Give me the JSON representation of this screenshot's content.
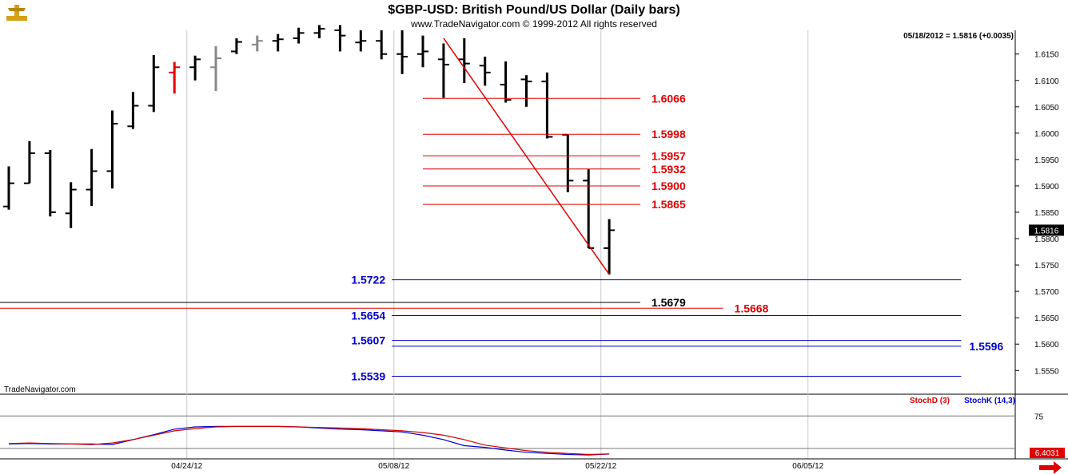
{
  "header": {
    "title": "$GBP-USD:  British Pound/US Dollar  (Daily bars)",
    "copyright": "www.TradeNavigator.com © 1999-2012 All rights reserved",
    "last_quote": "05/18/2012 = 1.5816 (+0.0035)",
    "brand": "TradeNavigator.com"
  },
  "colors": {
    "bars": "#000000",
    "up_mark": "#e00000",
    "grey_bars": "#888888",
    "red_levels": "#e00000",
    "blue_levels": "#0000cc",
    "grid": "#c8c8c8",
    "stoch_d": "#d00000",
    "stoch_k": "#0000cc"
  },
  "chart_data": {
    "type": "ohlc",
    "ylim": [
      1.5505,
      1.6195
    ],
    "yticks": [
      "1.6150",
      "1.6100",
      "1.6050",
      "1.6000",
      "1.5950",
      "1.5900",
      "1.5850",
      "1.5800",
      "1.5750",
      "1.5700",
      "1.5650",
      "1.5600",
      "1.5550"
    ],
    "xticks": [
      "04/24/12",
      "05/08/12",
      "05/22/12",
      "06/05/12"
    ],
    "last_price_label": "1.5816",
    "bars": [
      {
        "o": 1.5861,
        "h": 1.5937,
        "l": 1.5855,
        "c": 1.5905,
        "color": "black"
      },
      {
        "o": 1.5905,
        "h": 1.5985,
        "l": 1.5905,
        "c": 1.5962,
        "color": "black"
      },
      {
        "o": 1.5962,
        "h": 1.5968,
        "l": 1.5842,
        "c": 1.585,
        "color": "black"
      },
      {
        "o": 1.5848,
        "h": 1.5907,
        "l": 1.582,
        "c": 1.5893,
        "color": "black"
      },
      {
        "o": 1.5893,
        "h": 1.597,
        "l": 1.5862,
        "c": 1.5928,
        "color": "black"
      },
      {
        "o": 1.5928,
        "h": 1.6043,
        "l": 1.5895,
        "c": 1.6018,
        "color": "black"
      },
      {
        "o": 1.6013,
        "h": 1.6078,
        "l": 1.6008,
        "c": 1.6052,
        "color": "black"
      },
      {
        "o": 1.6052,
        "h": 1.6148,
        "l": 1.604,
        "c": 1.6125,
        "color": "black"
      },
      {
        "o": 1.6115,
        "h": 1.6135,
        "l": 1.6075,
        "c": 1.6125,
        "color": "red"
      },
      {
        "o": 1.6125,
        "h": 1.6147,
        "l": 1.61,
        "c": 1.614,
        "color": "black"
      },
      {
        "o": 1.6125,
        "h": 1.6165,
        "l": 1.608,
        "c": 1.6142,
        "color": "grey"
      },
      {
        "o": 1.6155,
        "h": 1.618,
        "l": 1.615,
        "c": 1.6173,
        "color": "black"
      },
      {
        "o": 1.6168,
        "h": 1.6185,
        "l": 1.6155,
        "c": 1.6175,
        "color": "grey"
      },
      {
        "o": 1.6175,
        "h": 1.6188,
        "l": 1.6155,
        "c": 1.6178,
        "color": "black"
      },
      {
        "o": 1.618,
        "h": 1.62,
        "l": 1.617,
        "c": 1.619,
        "color": "black"
      },
      {
        "o": 1.619,
        "h": 1.6205,
        "l": 1.618,
        "c": 1.6198,
        "color": "black"
      },
      {
        "o": 1.6195,
        "h": 1.6205,
        "l": 1.6155,
        "c": 1.6185,
        "color": "black"
      },
      {
        "o": 1.6172,
        "h": 1.6195,
        "l": 1.6155,
        "c": 1.6175,
        "color": "black"
      },
      {
        "o": 1.6175,
        "h": 1.6195,
        "l": 1.614,
        "c": 1.615,
        "color": "black"
      },
      {
        "o": 1.615,
        "h": 1.6195,
        "l": 1.6112,
        "c": 1.6145,
        "color": "black"
      },
      {
        "o": 1.615,
        "h": 1.6185,
        "l": 1.6125,
        "c": 1.6155,
        "color": "black"
      },
      {
        "o": 1.614,
        "h": 1.617,
        "l": 1.6067,
        "c": 1.613,
        "color": "black"
      },
      {
        "o": 1.614,
        "h": 1.618,
        "l": 1.6095,
        "c": 1.6132,
        "color": "black"
      },
      {
        "o": 1.6128,
        "h": 1.6145,
        "l": 1.609,
        "c": 1.6115,
        "color": "black"
      },
      {
        "o": 1.6092,
        "h": 1.6136,
        "l": 1.6058,
        "c": 1.6063,
        "color": "black"
      },
      {
        "o": 1.6102,
        "h": 1.611,
        "l": 1.605,
        "c": 1.6098,
        "color": "black"
      },
      {
        "o": 1.6098,
        "h": 1.6115,
        "l": 1.599,
        "c": 1.5993,
        "color": "black"
      },
      {
        "o": 1.5997,
        "h": 1.5997,
        "l": 1.5888,
        "c": 1.591,
        "color": "black"
      },
      {
        "o": 1.591,
        "h": 1.5932,
        "l": 1.5782,
        "c": 1.5782,
        "color": "black"
      },
      {
        "o": 1.5782,
        "h": 1.5837,
        "l": 1.5732,
        "c": 1.5816,
        "color": "black"
      }
    ],
    "trendline": {
      "from_bar": 21,
      "from_price": 1.618,
      "to_bar": 29,
      "to_price": 1.5732
    },
    "levels": [
      {
        "value": 1.6066,
        "label": "1.6066",
        "color": "red",
        "from_bar": 20,
        "to_bar": 30.5,
        "label_side": "right"
      },
      {
        "value": 1.5998,
        "label": "1.5998",
        "color": "red",
        "from_bar": 20,
        "to_bar": 30.5,
        "label_side": "right"
      },
      {
        "value": 1.5957,
        "label": "1.5957",
        "color": "red",
        "from_bar": 20,
        "to_bar": 30.5,
        "label_side": "right"
      },
      {
        "value": 1.5932,
        "label": "1.5932",
        "color": "red",
        "from_bar": 20,
        "to_bar": 30.5,
        "label_side": "right"
      },
      {
        "value": 1.59,
        "label": "1.5900",
        "color": "red",
        "from_bar": 20,
        "to_bar": 30.5,
        "label_side": "right"
      },
      {
        "value": 1.5865,
        "label": "1.5865",
        "color": "red",
        "from_bar": 20,
        "to_bar": 30.5,
        "label_side": "right"
      },
      {
        "value": 1.5722,
        "label": "1.5722",
        "color": "blue",
        "from_bar": 18.5,
        "to_bar": 46,
        "label_side": "left"
      },
      {
        "value": 1.5679,
        "label": "1.5679",
        "color": "black",
        "from_bar": -0.5,
        "to_bar": 30.5,
        "label_side": "right"
      },
      {
        "value": 1.5668,
        "label": "1.5668",
        "color": "red",
        "from_bar": -0.5,
        "to_bar": 34.5,
        "label_side": "right"
      },
      {
        "value": 1.5654,
        "label": "1.5654",
        "color": "blue",
        "from_bar": 18.5,
        "to_bar": 46,
        "label_side": "left"
      },
      {
        "value": 1.5607,
        "label": "1.5607",
        "color": "blue",
        "from_bar": 18.5,
        "to_bar": 46,
        "label_side": "left"
      },
      {
        "value": 1.5596,
        "label": "1.5596",
        "color": "blue",
        "from_bar": 18.5,
        "to_bar": 46,
        "label_side": "right"
      },
      {
        "value": 1.5539,
        "label": "1.5539",
        "color": "blue",
        "from_bar": 18.5,
        "to_bar": 46,
        "label_side": "left"
      }
    ],
    "stochastic": {
      "legend_d": "StochD (3)",
      "legend_k": "StochK (14,3)",
      "ylim": [
        0,
        100
      ],
      "level_label": "75",
      "last_value_label": "6.4031",
      "k": [
        24,
        25,
        24,
        24,
        24,
        23,
        32,
        41,
        51,
        55,
        56,
        56,
        56,
        56,
        55,
        53,
        51,
        50,
        48,
        46,
        40,
        32,
        21,
        18,
        13,
        9,
        7,
        5,
        4,
        6
      ],
      "d": [
        25,
        26,
        25,
        24,
        23,
        26,
        32,
        40,
        48,
        52,
        55,
        56,
        56,
        56,
        55,
        54,
        53,
        52,
        50,
        48,
        45,
        40,
        32,
        22,
        17,
        12,
        9,
        7,
        5,
        6
      ]
    }
  }
}
